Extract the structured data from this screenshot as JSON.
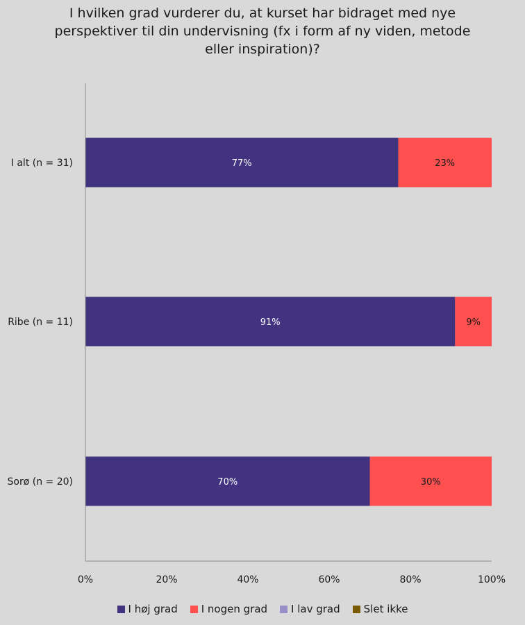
{
  "chart_data": {
    "type": "bar",
    "orientation": "horizontal",
    "stacked": true,
    "title": "I hvilken grad vurderer du, at kurset har bidraget med nye\nperspektiver til din undervisning (fx i form af ny viden, metode\neller inspiration)?",
    "categories": [
      "I alt (n = 31)",
      "Ribe (n = 11)",
      "Sorø (n = 20)"
    ],
    "series": [
      {
        "name": "I høj grad",
        "color": "#41337f",
        "values": [
          77,
          91,
          70
        ]
      },
      {
        "name": "I nogen grad",
        "color": "#ff5050",
        "values": [
          23,
          9,
          30
        ]
      },
      {
        "name": "I lav grad",
        "color": "#9a8fc8",
        "values": [
          0,
          0,
          0
        ]
      },
      {
        "name": "Slet ikke",
        "color": "#7a5c00",
        "values": [
          0,
          0,
          0
        ]
      }
    ],
    "data_labels": [
      [
        "77%",
        "23%"
      ],
      [
        "91%",
        "9%"
      ],
      [
        "70%",
        "30%"
      ]
    ],
    "xlim": [
      0,
      100
    ],
    "x_ticks": [
      "0%",
      "20%",
      "40%",
      "60%",
      "80%",
      "100%"
    ],
    "legend_position": "bottom",
    "grid": false
  }
}
